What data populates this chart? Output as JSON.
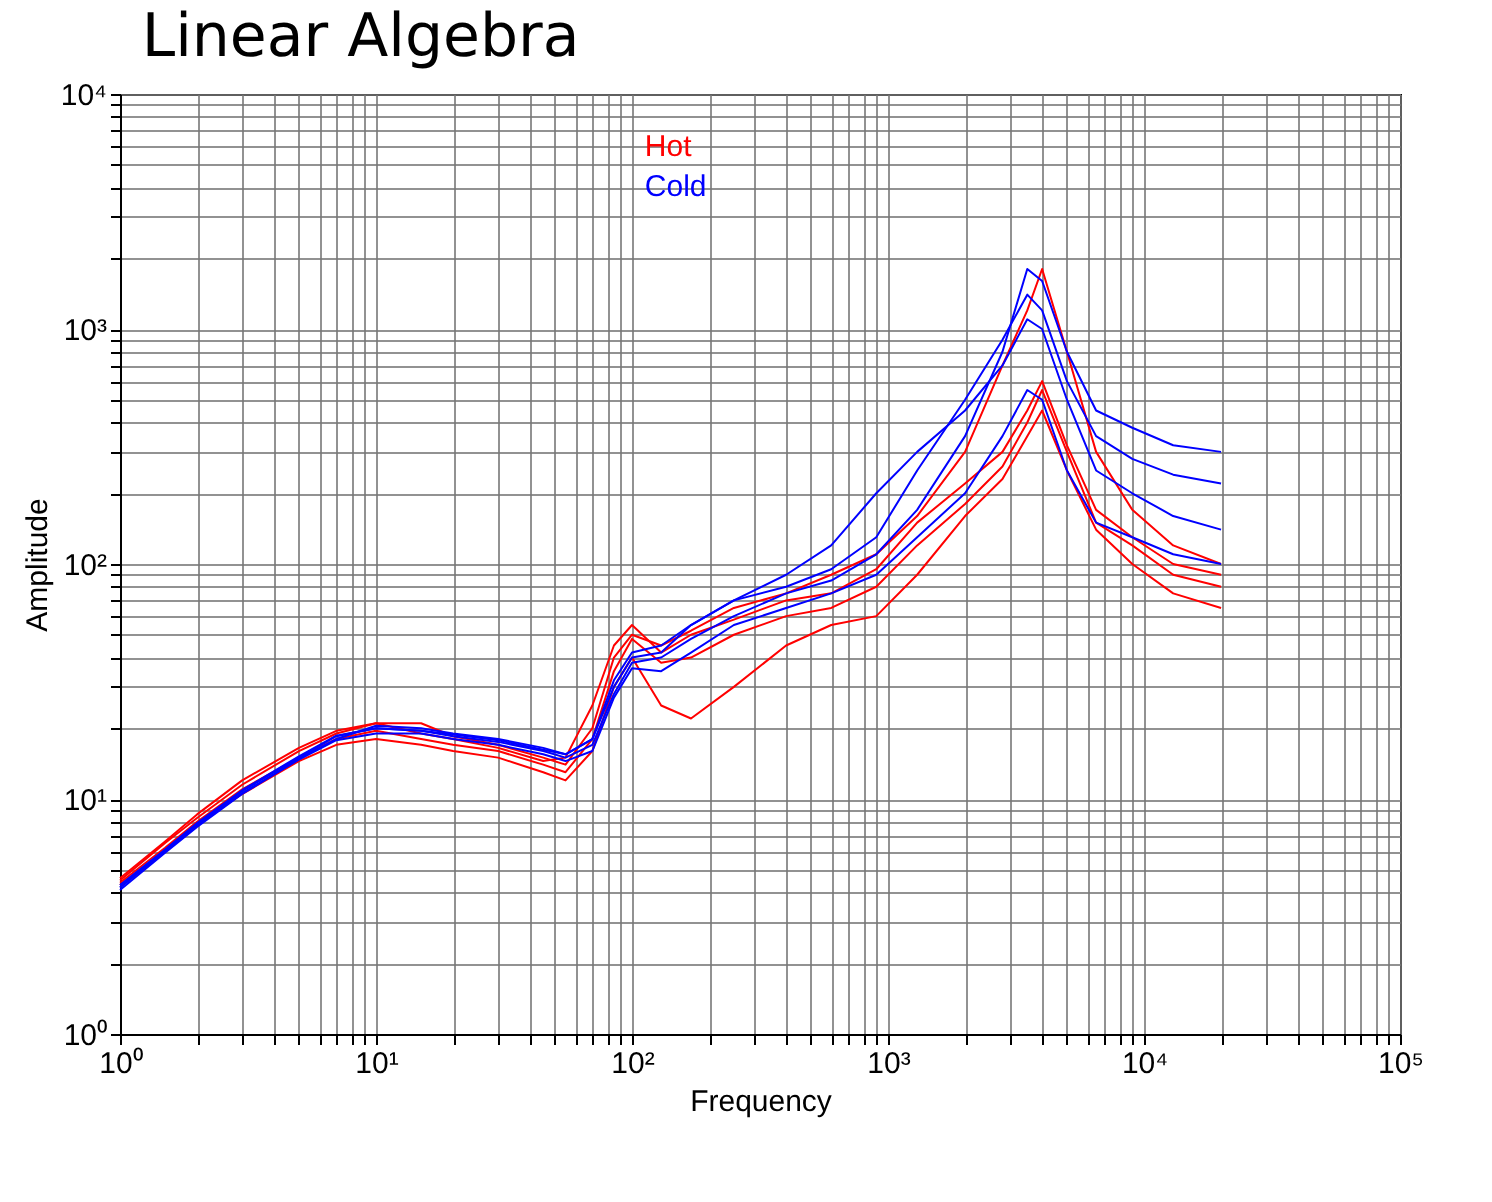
{
  "chart_data": {
    "type": "line",
    "title": "Linear Algebra",
    "xlabel": "Frequency",
    "ylabel": "Amplitude",
    "log": "xy",
    "grid": true,
    "legend": "top",
    "line_style": "solid",
    "marker": "none",
    "x": [
      1,
      1.5,
      2,
      3,
      5,
      7,
      10,
      15,
      20,
      30,
      45,
      55,
      70,
      85,
      100,
      130,
      170,
      250,
      400,
      600,
      900,
      1300,
      2000,
      2800,
      3500,
      4000,
      5000,
      6500,
      9000,
      13000,
      20000
    ],
    "xlim": [
      1,
      100000
    ],
    "ylim": [
      1,
      10000
    ],
    "xticks": [
      {
        "value": 1,
        "label": "10⁰"
      },
      {
        "value": 2,
        "label": null
      },
      {
        "value": 3,
        "label": null
      },
      {
        "value": 4,
        "label": null
      },
      {
        "value": 5,
        "label": null
      },
      {
        "value": 6,
        "label": null
      },
      {
        "value": 7,
        "label": null
      },
      {
        "value": 8,
        "label": null
      },
      {
        "value": 9,
        "label": null
      },
      {
        "value": 10,
        "label": "10¹"
      },
      {
        "value": 20,
        "label": null
      },
      {
        "value": 30,
        "label": null
      },
      {
        "value": 40,
        "label": null
      },
      {
        "value": 50,
        "label": null
      },
      {
        "value": 60,
        "label": null
      },
      {
        "value": 70,
        "label": null
      },
      {
        "value": 80,
        "label": null
      },
      {
        "value": 90,
        "label": null
      },
      {
        "value": 100,
        "label": "10²"
      },
      {
        "value": 200,
        "label": null
      },
      {
        "value": 300,
        "label": null
      },
      {
        "value": 400,
        "label": null
      },
      {
        "value": 500,
        "label": null
      },
      {
        "value": 600,
        "label": null
      },
      {
        "value": 700,
        "label": null
      },
      {
        "value": 800,
        "label": null
      },
      {
        "value": 900,
        "label": null
      },
      {
        "value": 1000,
        "label": "10³"
      },
      {
        "value": 2000,
        "label": null
      },
      {
        "value": 3000,
        "label": null
      },
      {
        "value": 4000,
        "label": null
      },
      {
        "value": 5000,
        "label": null
      },
      {
        "value": 6000,
        "label": null
      },
      {
        "value": 7000,
        "label": null
      },
      {
        "value": 8000,
        "label": null
      },
      {
        "value": 9000,
        "label": null
      },
      {
        "value": 10000,
        "label": "10⁴"
      },
      {
        "value": 20000,
        "label": null
      },
      {
        "value": 30000,
        "label": null
      },
      {
        "value": 40000,
        "label": null
      },
      {
        "value": 50000,
        "label": null
      },
      {
        "value": 60000,
        "label": null
      },
      {
        "value": 70000,
        "label": null
      },
      {
        "value": 80000,
        "label": null
      },
      {
        "value": 90000,
        "label": null
      },
      {
        "value": 100000,
        "label": "10⁵"
      }
    ],
    "yticks": [
      {
        "value": 1,
        "label": "10⁰"
      },
      {
        "value": 2,
        "label": null
      },
      {
        "value": 3,
        "label": null
      },
      {
        "value": 4,
        "label": null
      },
      {
        "value": 5,
        "label": null
      },
      {
        "value": 6,
        "label": null
      },
      {
        "value": 7,
        "label": null
      },
      {
        "value": 8,
        "label": null
      },
      {
        "value": 9,
        "label": null
      },
      {
        "value": 10,
        "label": "10¹"
      },
      {
        "value": 20,
        "label": null
      },
      {
        "value": 30,
        "label": null
      },
      {
        "value": 40,
        "label": null
      },
      {
        "value": 50,
        "label": null
      },
      {
        "value": 60,
        "label": null
      },
      {
        "value": 70,
        "label": null
      },
      {
        "value": 80,
        "label": null
      },
      {
        "value": 90,
        "label": null
      },
      {
        "value": 100,
        "label": "10²"
      },
      {
        "value": 200,
        "label": null
      },
      {
        "value": 300,
        "label": null
      },
      {
        "value": 400,
        "label": null
      },
      {
        "value": 500,
        "label": null
      },
      {
        "value": 600,
        "label": null
      },
      {
        "value": 700,
        "label": null
      },
      {
        "value": 800,
        "label": null
      },
      {
        "value": 900,
        "label": null
      },
      {
        "value": 1000,
        "label": "10³"
      },
      {
        "value": 2000,
        "label": null
      },
      {
        "value": 3000,
        "label": null
      },
      {
        "value": 4000,
        "label": null
      },
      {
        "value": 5000,
        "label": null
      },
      {
        "value": 6000,
        "label": null
      },
      {
        "value": 7000,
        "label": null
      },
      {
        "value": 8000,
        "label": null
      },
      {
        "value": 9000,
        "label": null
      },
      {
        "value": 10000,
        "label": "10⁴"
      }
    ],
    "series": [
      {
        "name": "Hot",
        "color": "#ff0000",
        "values": [
          4.4,
          6.2,
          8,
          11,
          15,
          18,
          19.5,
          18,
          17,
          16,
          14,
          13,
          18,
          35,
          48,
          38,
          40,
          50,
          60,
          65,
          80,
          120,
          180,
          260,
          400,
          550,
          300,
          150,
          120,
          90,
          80
        ]
      },
      {
        "color": "#ff0000",
        "values": [
          4.5,
          6.5,
          8.3,
          11.5,
          16,
          19,
          21,
          19,
          18,
          16.5,
          14.5,
          15,
          25,
          45,
          55,
          42,
          50,
          58,
          70,
          75,
          95,
          150,
          220,
          300,
          450,
          600,
          320,
          170,
          130,
          100,
          90
        ]
      },
      {
        "color": "#ff0000",
        "values": [
          4.3,
          6,
          7.8,
          10.5,
          14.5,
          17,
          18,
          17,
          16,
          15,
          13,
          12,
          16,
          30,
          40,
          25,
          22,
          30,
          45,
          55,
          60,
          90,
          160,
          230,
          350,
          450,
          250,
          140,
          100,
          75,
          65
        ]
      },
      {
        "color": "#ff0000",
        "values": [
          4.6,
          6.6,
          8.6,
          12,
          16.5,
          19.5,
          21,
          21,
          18.5,
          17,
          15,
          14,
          20,
          40,
          50,
          45,
          52,
          65,
          75,
          90,
          110,
          160,
          300,
          700,
          1200,
          1800,
          800,
          300,
          170,
          120,
          100
        ]
      },
      {
        "name": "Cold",
        "color": "#0000ff",
        "values": [
          4.2,
          6,
          7.8,
          10.8,
          15,
          18.5,
          20,
          19.5,
          18.5,
          17.5,
          16,
          15,
          17,
          28,
          38,
          40,
          48,
          60,
          75,
          85,
          110,
          170,
          350,
          800,
          1800,
          1600,
          800,
          450,
          380,
          320,
          300
        ]
      },
      {
        "color": "#0000ff",
        "values": [
          4.1,
          5.9,
          7.6,
          10.5,
          14.8,
          18,
          20.5,
          20,
          19,
          18,
          16.5,
          15.5,
          18,
          30,
          40,
          42,
          55,
          70,
          80,
          95,
          130,
          250,
          500,
          900,
          1400,
          1200,
          600,
          350,
          280,
          240,
          220
        ]
      },
      {
        "color": "#0000ff",
        "values": [
          4.2,
          6,
          7.7,
          10.6,
          14.7,
          17.8,
          19,
          19,
          18,
          17,
          15.5,
          14.5,
          16,
          27,
          36,
          35,
          42,
          55,
          65,
          75,
          90,
          130,
          200,
          350,
          550,
          500,
          250,
          150,
          130,
          110,
          100
        ]
      },
      {
        "color": "#0000ff",
        "values": [
          4.3,
          6.1,
          7.9,
          10.9,
          15.2,
          18.6,
          20,
          19.5,
          18.8,
          17.8,
          16.2,
          15.5,
          18,
          32,
          42,
          45,
          55,
          70,
          90,
          120,
          200,
          300,
          450,
          700,
          1100,
          1000,
          500,
          250,
          200,
          160,
          140
        ]
      }
    ]
  }
}
